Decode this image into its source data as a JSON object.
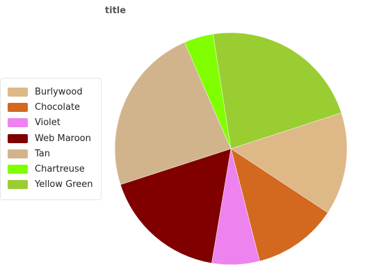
{
  "chart_data": {
    "type": "pie",
    "title": "title",
    "legend_position": "left",
    "slices": [
      {
        "label": "Burlywood",
        "value": 14,
        "color": "#deb887"
      },
      {
        "label": "Chocolate",
        "value": 11.5,
        "color": "#d2691e"
      },
      {
        "label": "Violet",
        "value": 6.5,
        "color": "#ee82ee"
      },
      {
        "label": "Web Maroon",
        "value": 17,
        "color": "#800000"
      },
      {
        "label": "Tan",
        "value": 23,
        "color": "#d2b48c"
      },
      {
        "label": "Chartreuse",
        "value": 4,
        "color": "#7fff00"
      },
      {
        "label": "Yellow Green",
        "value": 22,
        "color": "#9acd32"
      }
    ]
  }
}
